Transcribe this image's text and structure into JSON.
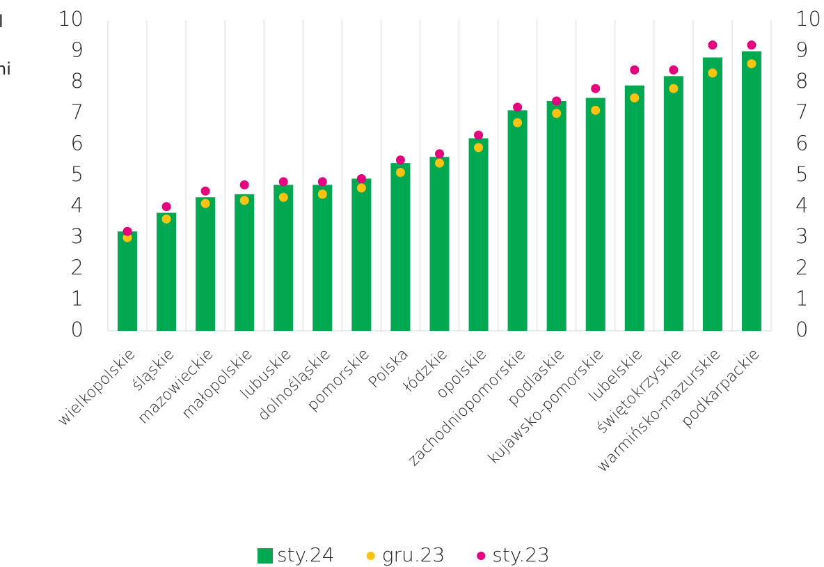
{
  "chart_data": {
    "type": "bar",
    "annotations": [
      "l",
      "ni"
    ],
    "categories": [
      "wielkopolskie",
      "śląskie",
      "mazowieckie",
      "małopolskie",
      "lubuskie",
      "dolnośląskie",
      "pomorskie",
      "Polska",
      "łódzkie",
      "opolskie",
      "zachodniopomorskie",
      "podlaskie",
      "kujawsko-pomorskie",
      "lubelskie",
      "świętokrzyskie",
      "warmińsko-mazurskie",
      "podkarpackie"
    ],
    "series": [
      {
        "name": "sty.24",
        "type": "bar",
        "color": "#00a84f",
        "values": [
          3.2,
          3.8,
          4.3,
          4.4,
          4.7,
          4.7,
          4.9,
          5.4,
          5.6,
          6.2,
          7.1,
          7.4,
          7.5,
          7.9,
          8.2,
          8.8,
          9.0
        ]
      },
      {
        "name": "gru.23",
        "type": "scatter",
        "color": "#ffc20e",
        "values": [
          3.0,
          3.6,
          4.1,
          4.2,
          4.3,
          4.4,
          4.6,
          5.1,
          5.4,
          5.9,
          6.7,
          7.0,
          7.1,
          7.5,
          7.8,
          8.3,
          8.6
        ]
      },
      {
        "name": "sty.23",
        "type": "scatter",
        "color": "#e6007e",
        "values": [
          3.2,
          4.0,
          4.5,
          4.7,
          4.8,
          4.8,
          4.9,
          5.5,
          5.7,
          6.3,
          7.2,
          7.4,
          7.8,
          8.4,
          8.4,
          9.2,
          9.2
        ]
      }
    ],
    "ylim": [
      0,
      10
    ],
    "yticks": [
      0,
      1,
      2,
      3,
      4,
      5,
      6,
      7,
      8,
      9,
      10
    ],
    "y2lim": [
      0,
      10
    ],
    "y2ticks": [
      0,
      1,
      2,
      3,
      4,
      5,
      6,
      7,
      8,
      9,
      10
    ],
    "grid": true,
    "legend": "bottom"
  }
}
